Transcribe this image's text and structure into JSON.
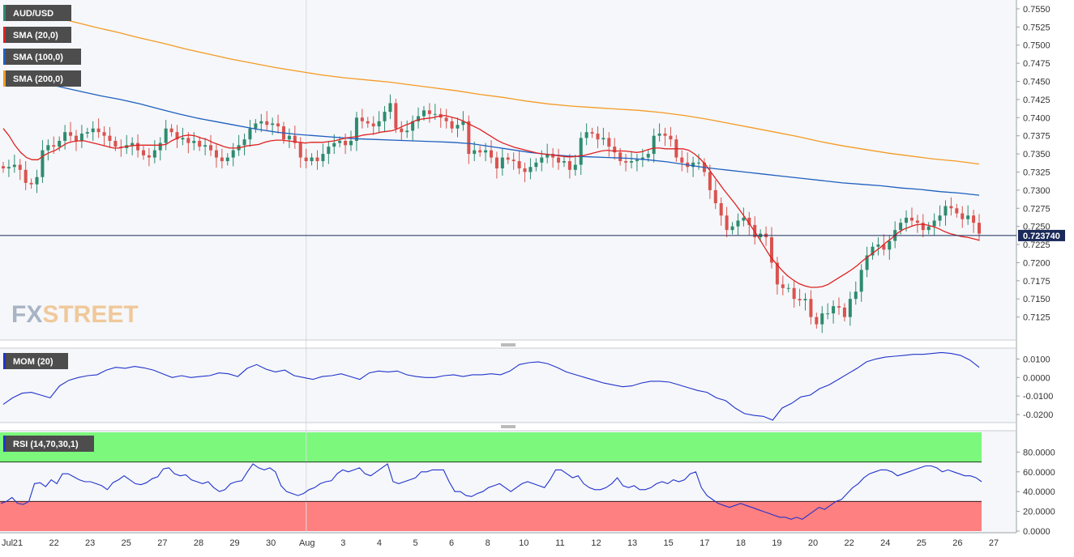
{
  "main_badges": [
    {
      "label": "AUD/USD",
      "color": "#2e8b6e"
    },
    {
      "label": "SMA (20,0)",
      "color": "#e02020"
    },
    {
      "label": "SMA (100,0)",
      "color": "#1f5fbf"
    },
    {
      "label": "SMA (200,0)",
      "color": "#f59a23"
    }
  ],
  "mom_badge": {
    "label": "MOM (20)",
    "color": "#2233cc"
  },
  "rsi_badge": {
    "label": "RSI (14,70,30,1)",
    "color": "#2233cc"
  },
  "last_price": "0.723740",
  "watermark": {
    "fx": "FX",
    "street": "STREET"
  },
  "colors": {
    "up": "#2e8b6e",
    "down": "#d9534f",
    "sma20": "#e02020",
    "sma100": "#1f5fbf",
    "sma200": "#f59a23",
    "indicator": "#2233cc",
    "rsi_overbought": "#7cf97c",
    "rsi_oversold": "#ff8080"
  },
  "chart_data": [
    {
      "type": "candlestick",
      "title": "AUD/USD",
      "x_labels": [
        "Jul",
        "21",
        "22",
        "23",
        "25",
        "27",
        "28",
        "29",
        "30",
        "Aug",
        "3",
        "4",
        "5",
        "6",
        "8",
        "10",
        "11",
        "12",
        "13",
        "15",
        "17",
        "18",
        "19",
        "20",
        "22",
        "24",
        "25",
        "26",
        "27"
      ],
      "y_ticks": [
        "0.7550",
        "0.7525",
        "0.7500",
        "0.7475",
        "0.7450",
        "0.7425",
        "0.7400",
        "0.7375",
        "0.7350",
        "0.7325",
        "0.7300",
        "0.7275",
        "0.7250",
        "0.7225",
        "0.7200",
        "0.7175",
        "0.7150",
        "0.7125"
      ],
      "ylim": [
        0.71,
        0.756
      ],
      "last_price": 0.72374,
      "close": [
        0.733,
        0.7332,
        0.7335,
        0.7328,
        0.731,
        0.7308,
        0.7318,
        0.7355,
        0.7362,
        0.736,
        0.7368,
        0.738,
        0.7375,
        0.7368,
        0.7378,
        0.738,
        0.7385,
        0.738,
        0.7375,
        0.7368,
        0.736,
        0.7358,
        0.7362,
        0.7365,
        0.7355,
        0.7348,
        0.7345,
        0.7355,
        0.7365,
        0.7385,
        0.738,
        0.737,
        0.7372,
        0.7365,
        0.7368,
        0.736,
        0.7362,
        0.7355,
        0.7345,
        0.734,
        0.7345,
        0.7355,
        0.7362,
        0.737,
        0.7385,
        0.7392,
        0.7395,
        0.739,
        0.7392,
        0.7388,
        0.737,
        0.7375,
        0.7365,
        0.7345,
        0.734,
        0.7345,
        0.734,
        0.735,
        0.736,
        0.7365,
        0.7368,
        0.7362,
        0.7368,
        0.74,
        0.7395,
        0.7392,
        0.7388,
        0.7395,
        0.7408,
        0.742,
        0.7385,
        0.738,
        0.7382,
        0.7395,
        0.7402,
        0.741,
        0.7405,
        0.7405,
        0.74,
        0.7395,
        0.7385,
        0.739,
        0.7395,
        0.735,
        0.7355,
        0.7352,
        0.7355,
        0.7345,
        0.733,
        0.7345,
        0.7342,
        0.734,
        0.733,
        0.7325,
        0.7332,
        0.7338,
        0.7345,
        0.735,
        0.7345,
        0.7338,
        0.734,
        0.7328,
        0.7335,
        0.7372,
        0.738,
        0.7378,
        0.737,
        0.7372,
        0.736,
        0.7352,
        0.734,
        0.7338,
        0.734,
        0.7342,
        0.7345,
        0.735,
        0.7375,
        0.7378,
        0.7375,
        0.737,
        0.7345,
        0.7338,
        0.7332,
        0.7338,
        0.7338,
        0.7325,
        0.73,
        0.7282,
        0.7265,
        0.7245,
        0.725,
        0.7258,
        0.7262,
        0.7252,
        0.7235,
        0.724,
        0.7235,
        0.72,
        0.717,
        0.7165,
        0.7165,
        0.715,
        0.7148,
        0.715,
        0.7125,
        0.7115,
        0.713,
        0.713,
        0.714,
        0.7138,
        0.7125,
        0.715,
        0.716,
        0.719,
        0.721,
        0.7222,
        0.7225,
        0.7218,
        0.723,
        0.7245,
        0.7255,
        0.7262,
        0.7258,
        0.7255,
        0.7245,
        0.725,
        0.7258,
        0.7265,
        0.7278,
        0.7275,
        0.7268,
        0.726,
        0.7265,
        0.7255,
        0.724
      ],
      "sma_20": [
        0.7385,
        0.7375,
        0.7362,
        0.7352,
        0.7345,
        0.7342,
        0.7342,
        0.7348,
        0.7352,
        0.7355,
        0.736,
        0.7365,
        0.7367,
        0.7368,
        0.7368,
        0.7366,
        0.7364,
        0.7362,
        0.736,
        0.7358,
        0.7358,
        0.736,
        0.7361,
        0.7362,
        0.7362,
        0.7362,
        0.7362,
        0.7362,
        0.7363,
        0.7368,
        0.7372,
        0.7375,
        0.7376,
        0.7375,
        0.7372,
        0.737,
        0.7366,
        0.7363,
        0.736,
        0.7358,
        0.7358,
        0.7359,
        0.7361,
        0.7362,
        0.7363,
        0.7366,
        0.7368,
        0.7369,
        0.7369,
        0.7368,
        0.7367,
        0.7366,
        0.7365,
        0.7366,
        0.7366,
        0.7366,
        0.7367,
        0.7368,
        0.737,
        0.7372,
        0.7373,
        0.7374,
        0.7376,
        0.7377,
        0.7378,
        0.738,
        0.7381,
        0.7382,
        0.7385,
        0.7389,
        0.7392,
        0.7396,
        0.7398,
        0.7399,
        0.74,
        0.7402,
        0.7403,
        0.7401,
        0.7399,
        0.7396,
        0.7392,
        0.7388,
        0.7384,
        0.7379,
        0.7374,
        0.7369,
        0.7365,
        0.7362,
        0.7359,
        0.7357,
        0.7355,
        0.7353,
        0.7351,
        0.735,
        0.7349,
        0.7348,
        0.7347,
        0.7346,
        0.7346,
        0.7347,
        0.7348,
        0.735,
        0.7352,
        0.7354,
        0.7355,
        0.7354,
        0.7354,
        0.7354,
        0.7353,
        0.7352,
        0.7353,
        0.7356,
        0.7358,
        0.7358,
        0.7357,
        0.7357,
        0.7357,
        0.7357,
        0.7355,
        0.735,
        0.7343,
        0.7334,
        0.7323,
        0.7312,
        0.7301,
        0.7291,
        0.7281,
        0.727,
        0.7259,
        0.7247,
        0.7235,
        0.7222,
        0.7209,
        0.7199,
        0.719,
        0.7182,
        0.7176,
        0.7171,
        0.7168,
        0.7166,
        0.7166,
        0.7167,
        0.717,
        0.7175,
        0.718,
        0.7185,
        0.719,
        0.7196,
        0.7203,
        0.7209,
        0.7215,
        0.7221,
        0.7228,
        0.7234,
        0.7241,
        0.7246,
        0.7249,
        0.7252,
        0.7253,
        0.7252,
        0.725,
        0.7247,
        0.7243,
        0.724,
        0.7238,
        0.7236,
        0.7235,
        0.7233,
        0.7231
      ],
      "sma_100": [
        0.746,
        0.7455,
        0.7448,
        0.7442,
        0.7436,
        0.743,
        0.7425,
        0.7419,
        0.7412,
        0.7405,
        0.7399,
        0.7394,
        0.7389,
        0.7384,
        0.738,
        0.7377,
        0.7375,
        0.7373,
        0.7371,
        0.737,
        0.7369,
        0.7368,
        0.7367,
        0.7366,
        0.7364,
        0.736,
        0.7356,
        0.7352,
        0.7349,
        0.7347,
        0.7346,
        0.7345,
        0.7344,
        0.7342,
        0.7339,
        0.7335,
        0.7331,
        0.7328,
        0.7325,
        0.7322,
        0.7319,
        0.7316,
        0.7313,
        0.731,
        0.7308,
        0.7306,
        0.7303,
        0.7301,
        0.7298,
        0.7296,
        0.7293
      ],
      "sma_200": [
        0.7555,
        0.7548,
        0.754,
        0.7533,
        0.7525,
        0.7518,
        0.751,
        0.7503,
        0.7495,
        0.7488,
        0.7481,
        0.7475,
        0.7469,
        0.7464,
        0.7459,
        0.7455,
        0.7452,
        0.7449,
        0.7445,
        0.7441,
        0.7437,
        0.7432,
        0.7428,
        0.7423,
        0.7419,
        0.7416,
        0.7414,
        0.7412,
        0.741,
        0.7407,
        0.7403,
        0.7398,
        0.7392,
        0.7386,
        0.738,
        0.7374,
        0.7367,
        0.7361,
        0.7356,
        0.7351,
        0.7347,
        0.7343,
        0.734,
        0.7336
      ]
    },
    {
      "type": "line",
      "title": "MOM (20)",
      "y_ticks": [
        "0.0100",
        "0.0000",
        "-0.0100",
        "-0.0200"
      ],
      "ylim": [
        -0.0235,
        0.015
      ],
      "values": [
        -0.0145,
        -0.011,
        -0.0085,
        -0.008,
        -0.0095,
        -0.011,
        -0.0045,
        -0.0015,
        0.0,
        0.001,
        0.0015,
        0.004,
        0.0055,
        0.005,
        0.006,
        0.0052,
        0.004,
        0.002,
        0.0,
        0.001,
        0.0,
        0.0005,
        0.001,
        0.0025,
        0.002,
        0.0005,
        0.005,
        0.007,
        0.0045,
        0.003,
        0.004,
        0.001,
        0.0,
        -0.001,
        0.0005,
        0.001,
        0.002,
        0.0005,
        -0.001,
        0.0025,
        0.0035,
        0.003,
        0.0035,
        0.0015,
        0.0005,
        0.0,
        0.0,
        0.001,
        0.0015,
        0.0005,
        0.0015,
        0.0015,
        0.002,
        0.0015,
        0.0035,
        0.007,
        0.008,
        0.0085,
        0.0075,
        0.0055,
        0.003,
        0.0015,
        0.0,
        -0.0015,
        -0.003,
        -0.004,
        -0.005,
        -0.0045,
        -0.003,
        -0.002,
        -0.002,
        -0.0025,
        -0.004,
        -0.0055,
        -0.007,
        -0.008,
        -0.011,
        -0.0125,
        -0.0165,
        -0.0195,
        -0.0205,
        -0.021,
        -0.023,
        -0.0165,
        -0.014,
        -0.0105,
        -0.0095,
        -0.006,
        -0.004,
        -0.001,
        0.002,
        0.005,
        0.0085,
        0.01,
        0.011,
        0.0115,
        0.012,
        0.0125,
        0.0125,
        0.013,
        0.0135,
        0.013,
        0.012,
        0.0095,
        0.0055
      ]
    },
    {
      "type": "line",
      "title": "RSI (14,70,30,1)",
      "y_ticks": [
        "80.0000",
        "60.0000",
        "40.0000",
        "20.0000",
        "0.0000"
      ],
      "ylim": [
        0,
        100
      ],
      "overbought": 70,
      "oversold": 30,
      "values": [
        28,
        30,
        34,
        28,
        27,
        30,
        48,
        49,
        45,
        52,
        48,
        58,
        58,
        55,
        52,
        50,
        50,
        48,
        46,
        42,
        49,
        52,
        56,
        52,
        48,
        47,
        49,
        53,
        55,
        63,
        64,
        58,
        56,
        57,
        52,
        50,
        48,
        50,
        44,
        40,
        42,
        48,
        50,
        51,
        60,
        68,
        64,
        62,
        64,
        60,
        46,
        40,
        38,
        36,
        38,
        42,
        44,
        48,
        50,
        51,
        58,
        62,
        60,
        62,
        64,
        58,
        56,
        60,
        64,
        68,
        50,
        48,
        50,
        52,
        54,
        60,
        60,
        62,
        62,
        62,
        50,
        40,
        40,
        36,
        35,
        38,
        40,
        44,
        46,
        48,
        44,
        40,
        44,
        48,
        50,
        48,
        46,
        44,
        52,
        62,
        62,
        58,
        54,
        56,
        48,
        44,
        42,
        42,
        44,
        48,
        54,
        46,
        44,
        46,
        42,
        42,
        44,
        48,
        50,
        48,
        52,
        50,
        52,
        58,
        60,
        44,
        36,
        32,
        28,
        26,
        24,
        26,
        28,
        26,
        24,
        22,
        20,
        18,
        16,
        14,
        14,
        12,
        14,
        12,
        16,
        20,
        24,
        22,
        26,
        30,
        32,
        38,
        44,
        48,
        54,
        58,
        60,
        62,
        62,
        60,
        56,
        58,
        60,
        62,
        64,
        66,
        66,
        64,
        60,
        62,
        60,
        58,
        56,
        56,
        54,
        50
      ]
    }
  ]
}
